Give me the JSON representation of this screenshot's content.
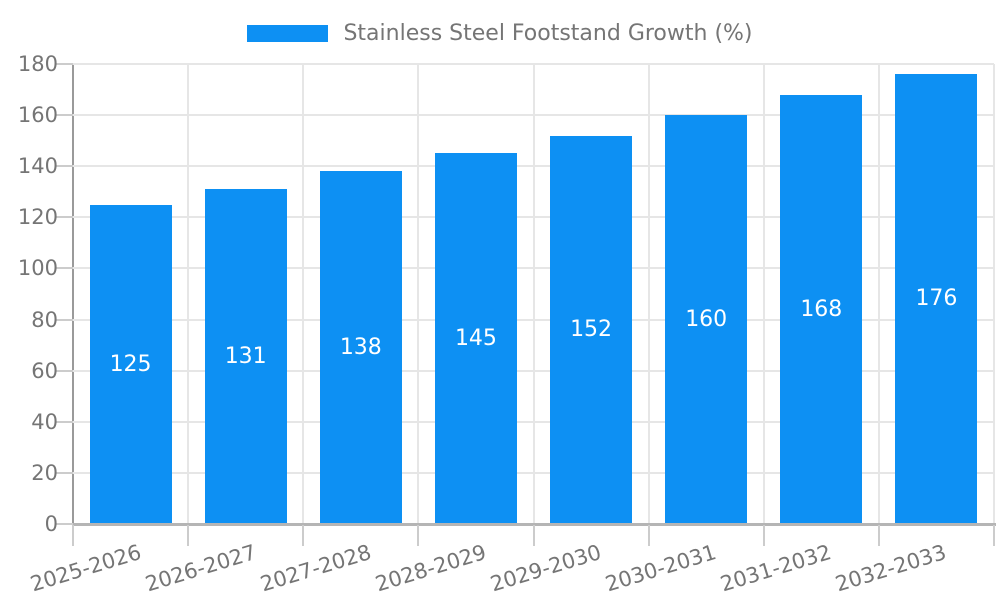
{
  "chart_data": {
    "type": "bar",
    "title": "Stainless Steel Footstand Growth (%)",
    "categories": [
      "2025-2026",
      "2026-2027",
      "2027-2028",
      "2028-2029",
      "2029-2030",
      "2030-2031",
      "2031-2032",
      "2032-2033"
    ],
    "series": [
      {
        "name": "Stainless Steel Footstand Growth (%)",
        "values": [
          125,
          131,
          138,
          145,
          152,
          160,
          168,
          176
        ]
      }
    ],
    "xlabel": "",
    "ylabel": "",
    "ylim": [
      0,
      180
    ],
    "ytick_step": 20,
    "ytick_labels": [
      "0",
      "20",
      "40",
      "60",
      "80",
      "100",
      "120",
      "140",
      "160",
      "180"
    ],
    "grid": true,
    "value_labels": "inside-center",
    "legend_position": "top-center"
  },
  "legend": {
    "label": "Stainless Steel Footstand Growth (%)"
  },
  "colors": {
    "bar": "#0d90f3",
    "value_label": "#ffffff",
    "grid": "#e6e6e6",
    "axis_y": "#9a9a9a",
    "axis_x": "#b5b5b5",
    "tick": "#cccccc",
    "tick_label": "#757575",
    "legend_label": "#757575",
    "background": "#ffffff"
  }
}
